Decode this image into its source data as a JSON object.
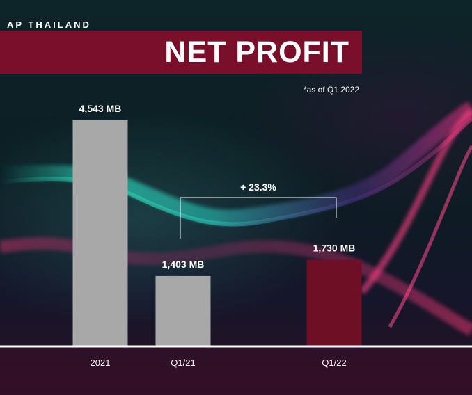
{
  "header": {
    "brand": "AP THAILAND",
    "title": "NET PROFIT",
    "note": "*as of Q1 2022"
  },
  "colors": {
    "accent": "#7a0f2c",
    "bar_gray": "#a8a8a8",
    "bar_highlight": "#6f0f26",
    "text": "#ffffff"
  },
  "chart_data": {
    "type": "bar",
    "title": "NET PROFIT",
    "xlabel": "",
    "ylabel": "",
    "categories": [
      "2021",
      "Q1/21",
      "Q1/22"
    ],
    "values": [
      4543,
      1403,
      1730
    ],
    "unit": "MB",
    "data_labels": [
      "4,543 MB",
      "1,403 MB",
      "1,730 MB"
    ],
    "highlight_index": 2,
    "grid": false,
    "legend": "none",
    "annotation": {
      "text": "+ 23.3%",
      "from_category": "Q1/21",
      "to_category": "Q1/22"
    }
  }
}
